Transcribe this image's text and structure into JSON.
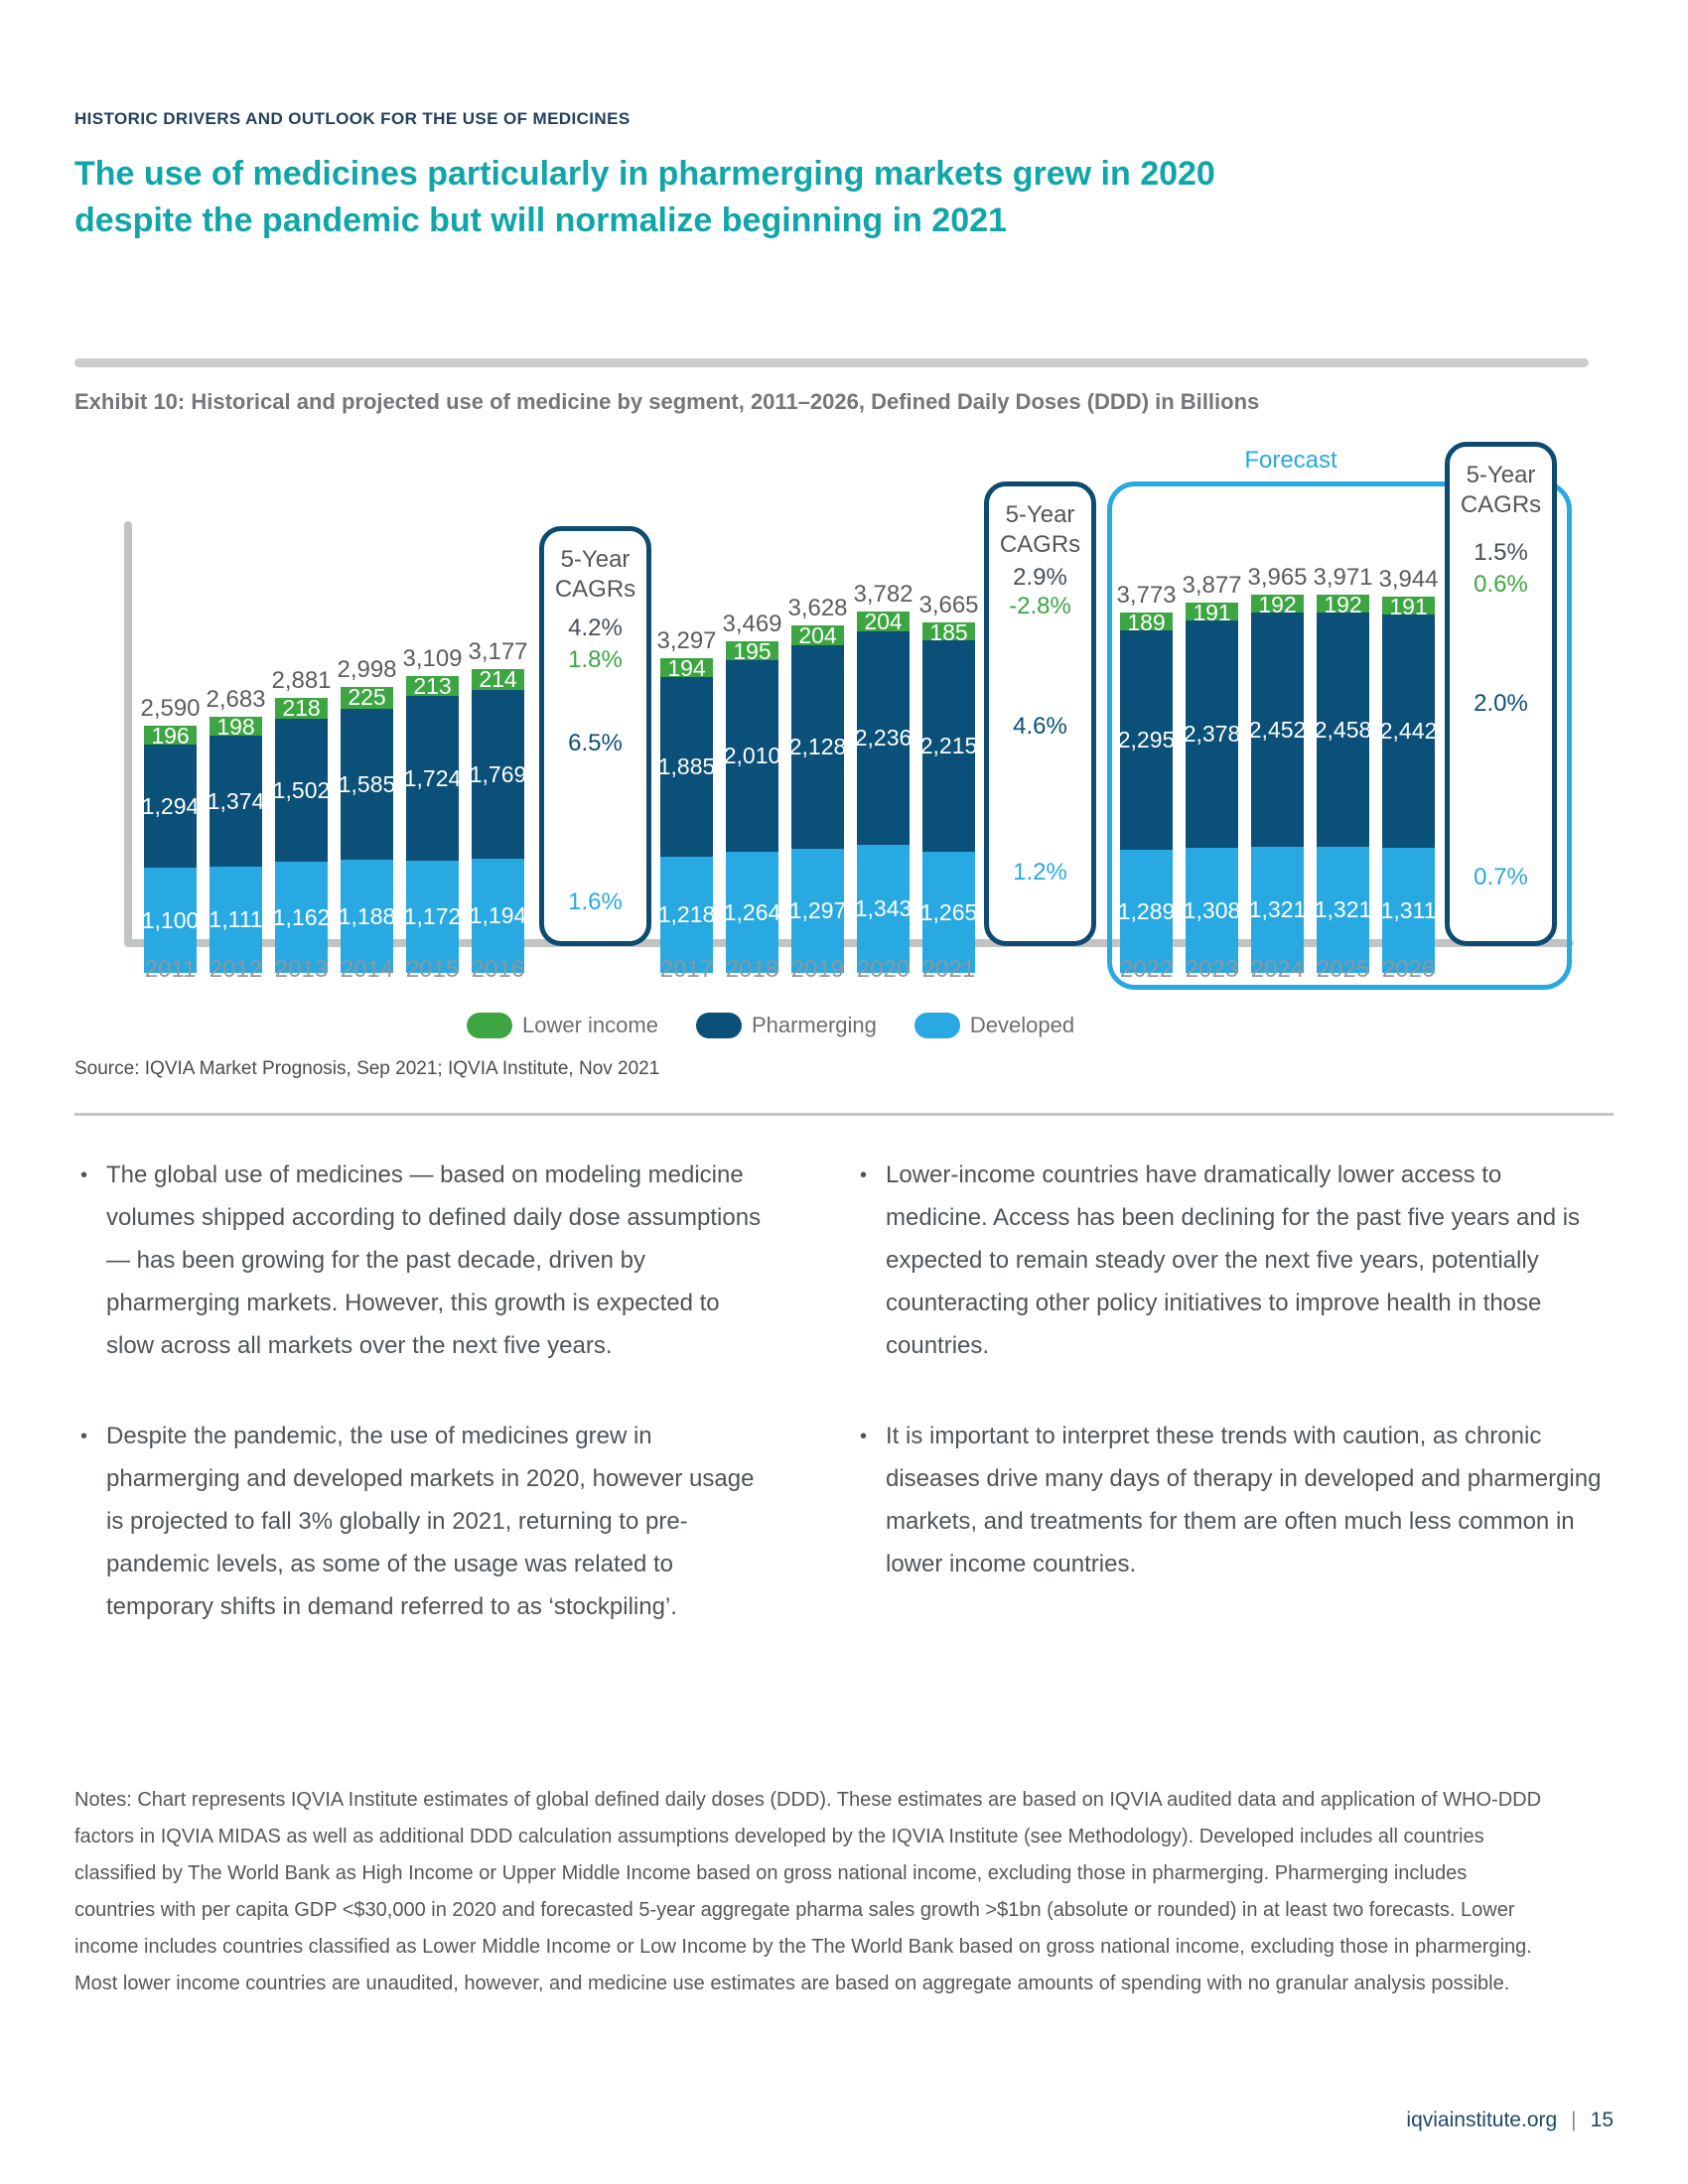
{
  "page": {
    "kicker": "HISTORIC DRIVERS AND OUTLOOK FOR THE USE OF MEDICINES",
    "title": "The use of medicines particularly in pharmerging markets grew in 2020 despite the pandemic but will normalize beginning in 2021",
    "exhibit_caption": "Exhibit 10: Historical and projected use of medicine by segment, 2011–2026,  Defined Daily Doses (DDD) in Billions",
    "source": "Source: IQVIA Market Prognosis, Sep 2021; IQVIA Institute, Nov 2021",
    "bullet_char": "•",
    "notes": "Notes: Chart represents IQVIA Institute estimates of global defined daily doses (DDD). These estimates are based on IQVIA audited data and application of WHO-DDD factors in IQVIA MIDAS as well as additional DDD calculation assumptions developed by the IQVIA Institute (see Methodology). Developed includes all countries classified by The World Bank as High Income or Upper Middle Income based on gross national income, excluding those in pharmerging. Pharmerging includes countries with per capita GDP <$30,000 in 2020 and forecasted 5-year aggregate pharma sales growth >$1bn (absolute or rounded) in at least two forecasts. Lower income includes countries classified as Lower Middle Income or Low Income by the The World Bank based on gross national income, excluding those in pharmerging. Most lower income countries are unaudited, however, and medicine use estimates are based on aggregate amounts of spending with no granular analysis possible.",
    "footer": {
      "site": "iqviainstitute.org",
      "separator": "|",
      "page_number": "15"
    }
  },
  "bullets": {
    "left": [
      "The global use of medicines — based on modeling medicine volumes shipped according to defined daily dose assumptions — has been growing for the past decade, driven by pharmerging markets. However, this growth is expected to slow across all markets over the next five years.",
      "Despite the pandemic, the use of medicines grew in pharmerging and developed markets in 2020, however usage is projected to fall 3% globally in 2021, returning to pre-pandemic levels, as some of the usage was related to temporary shifts in demand referred to as ‘stockpiling’."
    ],
    "right": [
      "Lower-income countries have dramatically lower access to medicine. Access has been declining for the past five years and is expected to remain steady over the next five years, potentially counteracting other policy initiatives to improve health in those countries.",
      "It is important to interpret these trends with caution, as chronic diseases drive many days of therapy in developed and pharmerging markets, and treatments for them are often much less common in lower income countries."
    ]
  },
  "chart_data": {
    "type": "bar",
    "stacked": true,
    "title": "Exhibit 10: Historical and projected use of medicine by segment, 2011–2026, Defined Daily Doses (DDD) in Billions",
    "xlabel": "",
    "ylabel": "Defined Daily Doses (DDD) in Billions",
    "ylim": [
      0,
      4000
    ],
    "grid": false,
    "legend_position": "bottom",
    "forecast_label": "Forecast",
    "forecast_years": [
      "2022",
      "2023",
      "2024",
      "2025",
      "2026"
    ],
    "categories": [
      "2011",
      "2012",
      "2013",
      "2014",
      "2015",
      "2016",
      "2017",
      "2018",
      "2019",
      "2020",
      "2021",
      "2022",
      "2023",
      "2024",
      "2025",
      "2026"
    ],
    "series": [
      {
        "name": "Developed",
        "color": "#29A9E1",
        "values": [
          1100,
          1111,
          1162,
          1188,
          1172,
          1194,
          1218,
          1264,
          1297,
          1343,
          1265,
          1289,
          1308,
          1321,
          1321,
          1311
        ]
      },
      {
        "name": "Pharmerging",
        "color": "#0B5078",
        "values": [
          1294,
          1374,
          1502,
          1585,
          1724,
          1769,
          1885,
          2010,
          2128,
          2236,
          2215,
          2295,
          2378,
          2452,
          2458,
          2442
        ]
      },
      {
        "name": "Lower income",
        "color": "#3DA642",
        "values": [
          196,
          198,
          218,
          225,
          213,
          214,
          194,
          195,
          204,
          204,
          185,
          189,
          191,
          192,
          192,
          191
        ]
      }
    ],
    "totals": [
      2590,
      2683,
      2881,
      2998,
      3109,
      3177,
      3297,
      3469,
      3628,
      3782,
      3665,
      3773,
      3877,
      3965,
      3971,
      3944
    ],
    "cagr_boxes": [
      {
        "title": "5-Year CAGRs",
        "overall": "4.2%",
        "lower_income": "1.8%",
        "pharmerging": "6.5%",
        "developed": "1.6%"
      },
      {
        "title": "5-Year CAGRs",
        "overall": "2.9%",
        "lower_income": "-2.8%",
        "pharmerging": "4.6%",
        "developed": "1.2%"
      },
      {
        "title": "5-Year CAGRs",
        "overall": "1.5%",
        "lower_income": "0.6%",
        "pharmerging": "2.0%",
        "developed": "0.7%"
      }
    ],
    "legend": [
      {
        "label": "Lower income",
        "color": "#3DA642"
      },
      {
        "label": "Pharmerging",
        "color": "#0B5078"
      },
      {
        "label": "Developed",
        "color": "#29A9E1"
      }
    ]
  }
}
